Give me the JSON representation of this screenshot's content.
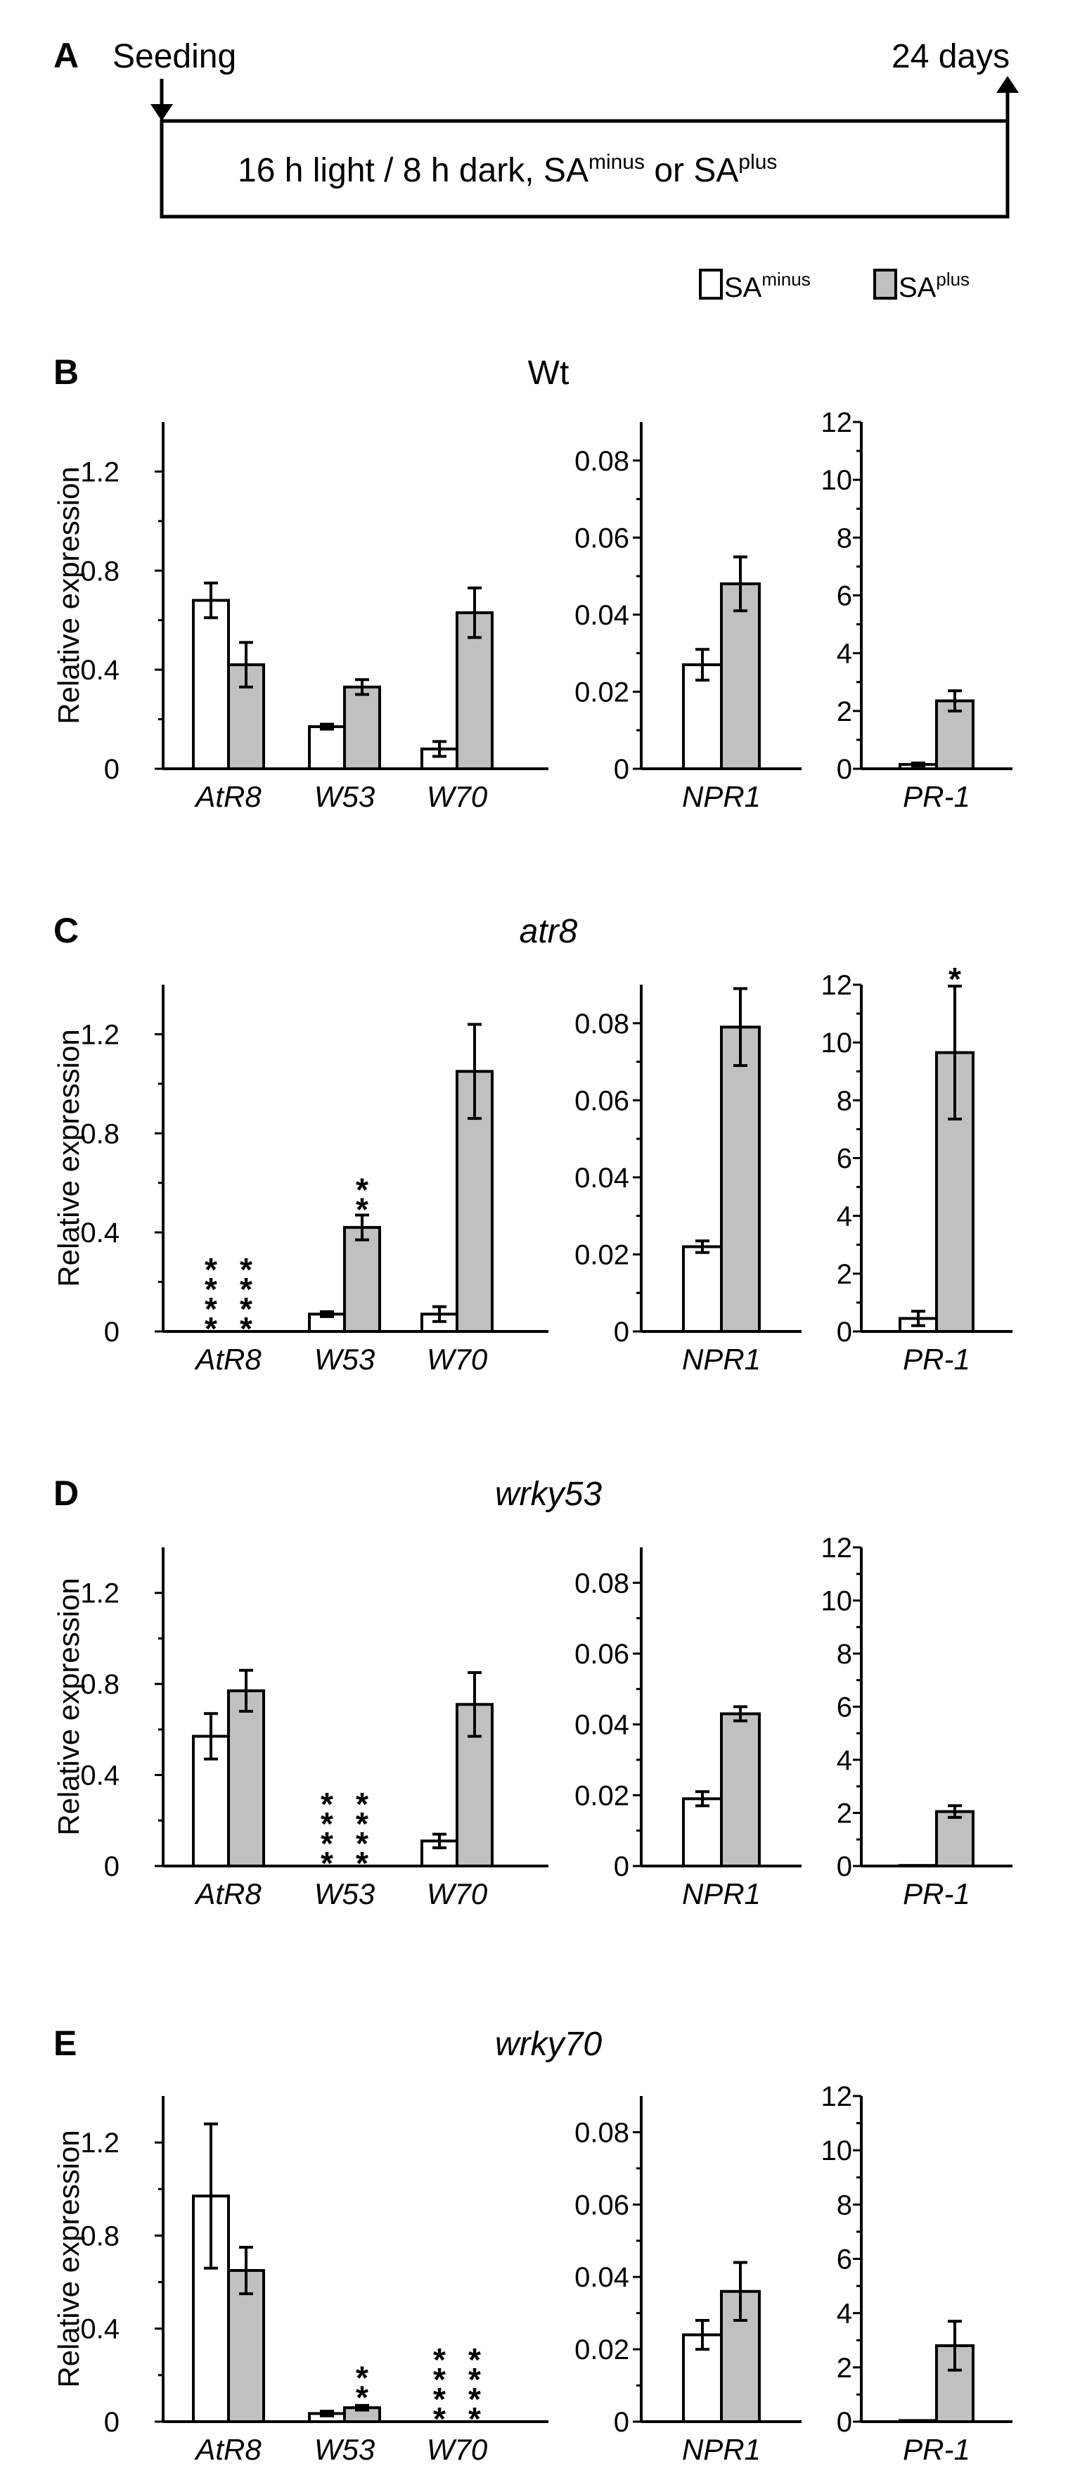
{
  "timeline": {
    "panel_label": "A",
    "start_label": "Seeding",
    "end_label": "24 days",
    "condition_text": "16 h light / 8 h dark, SA",
    "cond_sup1": "minus",
    "cond_mid": " or SA",
    "cond_sup2": "plus"
  },
  "legend": {
    "items": [
      {
        "base": "SA",
        "sup": "minus",
        "color": "#ffffff"
      },
      {
        "base": "SA",
        "sup": "plus",
        "color": "#c0c0c0"
      }
    ]
  },
  "colors": {
    "minus": "#ffffff",
    "plus": "#c0c0c0",
    "stroke": "#000000"
  },
  "y_axis_label": "Relative expression",
  "star_glyph": "*",
  "chart_data": [
    {
      "panel": "B",
      "title": "Wt",
      "title_italic": false,
      "type": "bar",
      "subplots": [
        {
          "categories": [
            "AtR8",
            "W53",
            "W70"
          ],
          "ylim": [
            0,
            1.4
          ],
          "ticks": [
            "0",
            "0.4",
            "0.8",
            "1.2"
          ],
          "tick_values": [
            0,
            0.4,
            0.8,
            1.2
          ],
          "series": [
            {
              "name": "SAminus",
              "values": [
                0.68,
                0.17,
                0.08
              ],
              "errors": [
                0.07,
                0.01,
                0.03
              ]
            },
            {
              "name": "SAplus",
              "values": [
                0.42,
                0.33,
                0.63
              ],
              "errors": [
                0.09,
                0.03,
                0.1
              ]
            }
          ],
          "stars": []
        },
        {
          "categories": [
            "NPR1"
          ],
          "ylim": [
            0,
            0.09
          ],
          "ticks": [
            "0",
            "0.02",
            "0.04",
            "0.06",
            "0.08"
          ],
          "tick_values": [
            0,
            0.02,
            0.04,
            0.06,
            0.08
          ],
          "series": [
            {
              "name": "SAminus",
              "values": [
                0.027
              ],
              "errors": [
                0.004
              ]
            },
            {
              "name": "SAplus",
              "values": [
                0.048
              ],
              "errors": [
                0.007
              ]
            }
          ],
          "stars": []
        },
        {
          "categories": [
            "PR-1"
          ],
          "ylim": [
            0,
            12
          ],
          "ticks": [
            "0",
            "2",
            "4",
            "6",
            "8",
            "10",
            "12"
          ],
          "tick_values": [
            0,
            2,
            4,
            6,
            8,
            10,
            12
          ],
          "series": [
            {
              "name": "SAminus",
              "values": [
                0.15
              ],
              "errors": [
                0.05
              ]
            },
            {
              "name": "SAplus",
              "values": [
                2.35
              ],
              "errors": [
                0.35
              ]
            }
          ],
          "stars": []
        }
      ]
    },
    {
      "panel": "C",
      "title": "atr8",
      "title_italic": true,
      "type": "bar",
      "subplots": [
        {
          "categories": [
            "AtR8",
            "W53",
            "W70"
          ],
          "ylim": [
            0,
            1.4
          ],
          "ticks": [
            "0",
            "0.4",
            "0.8",
            "1.2"
          ],
          "tick_values": [
            0,
            0.4,
            0.8,
            1.2
          ],
          "series": [
            {
              "name": "SAminus",
              "values": [
                0,
                0.07,
                0.07
              ],
              "errors": [
                0,
                0.01,
                0.03
              ]
            },
            {
              "name": "SAplus",
              "values": [
                0,
                0.42,
                1.05
              ],
              "errors": [
                0,
                0.05,
                0.19
              ]
            }
          ],
          "stars": [
            {
              "cat": 0,
              "series": 0,
              "n": 4,
              "base": 0
            },
            {
              "cat": 0,
              "series": 1,
              "n": 4,
              "base": 0
            },
            {
              "cat": 1,
              "series": 1,
              "n": 2,
              "base": 0.47
            }
          ]
        },
        {
          "categories": [
            "NPR1"
          ],
          "ylim": [
            0,
            0.09
          ],
          "ticks": [
            "0",
            "0.02",
            "0.04",
            "0.06",
            "0.08"
          ],
          "tick_values": [
            0,
            0.02,
            0.04,
            0.06,
            0.08
          ],
          "series": [
            {
              "name": "SAminus",
              "values": [
                0.022
              ],
              "errors": [
                0.0015
              ]
            },
            {
              "name": "SAplus",
              "values": [
                0.079
              ],
              "errors": [
                0.01
              ]
            }
          ],
          "stars": []
        },
        {
          "categories": [
            "PR-1"
          ],
          "ylim": [
            0,
            12
          ],
          "ticks": [
            "0",
            "2",
            "4",
            "6",
            "8",
            "10",
            "12"
          ],
          "tick_values": [
            0,
            2,
            4,
            6,
            8,
            10,
            12
          ],
          "series": [
            {
              "name": "SAminus",
              "values": [
                0.45
              ],
              "errors": [
                0.25
              ]
            },
            {
              "name": "SAplus",
              "values": [
                9.65
              ],
              "errors": [
                2.3
              ]
            }
          ],
          "stars": [
            {
              "cat": 0,
              "series": 1,
              "n": 1,
              "base": 12.0
            }
          ]
        }
      ]
    },
    {
      "panel": "D",
      "title": "wrky53",
      "title_italic": true,
      "type": "bar",
      "subplots": [
        {
          "categories": [
            "AtR8",
            "W53",
            "W70"
          ],
          "ylim": [
            0,
            1.4
          ],
          "ticks": [
            "0",
            "0.4",
            "0.8",
            "1.2"
          ],
          "tick_values": [
            0,
            0.4,
            0.8,
            1.2
          ],
          "series": [
            {
              "name": "SAminus",
              "values": [
                0.57,
                0,
                0.11
              ],
              "errors": [
                0.1,
                0,
                0.03
              ]
            },
            {
              "name": "SAplus",
              "values": [
                0.77,
                0,
                0.71
              ],
              "errors": [
                0.09,
                0,
                0.14
              ]
            }
          ],
          "stars": [
            {
              "cat": 1,
              "series": 0,
              "n": 4,
              "base": 0
            },
            {
              "cat": 1,
              "series": 1,
              "n": 4,
              "base": 0
            }
          ]
        },
        {
          "categories": [
            "NPR1"
          ],
          "ylim": [
            0,
            0.09
          ],
          "ticks": [
            "0",
            "0.02",
            "0.04",
            "0.06",
            "0.08"
          ],
          "tick_values": [
            0,
            0.02,
            0.04,
            0.06,
            0.08
          ],
          "series": [
            {
              "name": "SAminus",
              "values": [
                0.019
              ],
              "errors": [
                0.002
              ]
            },
            {
              "name": "SAplus",
              "values": [
                0.043
              ],
              "errors": [
                0.002
              ]
            }
          ],
          "stars": []
        },
        {
          "categories": [
            "PR-1"
          ],
          "ylim": [
            0,
            12
          ],
          "ticks": [
            "0",
            "2",
            "4",
            "6",
            "8",
            "10",
            "12"
          ],
          "tick_values": [
            0,
            2,
            4,
            6,
            8,
            10,
            12
          ],
          "series": [
            {
              "name": "SAminus",
              "values": [
                0.02
              ],
              "errors": [
                0
              ]
            },
            {
              "name": "SAplus",
              "values": [
                2.05
              ],
              "errors": [
                0.22
              ]
            }
          ],
          "stars": []
        }
      ]
    },
    {
      "panel": "E",
      "title": "wrky70",
      "title_italic": true,
      "type": "bar",
      "subplots": [
        {
          "categories": [
            "AtR8",
            "W53",
            "W70"
          ],
          "ylim": [
            0,
            1.4
          ],
          "ticks": [
            "0",
            "0.4",
            "0.8",
            "1.2"
          ],
          "tick_values": [
            0,
            0.4,
            0.8,
            1.2
          ],
          "series": [
            {
              "name": "SAminus",
              "values": [
                0.97,
                0.035,
                0
              ],
              "errors": [
                0.31,
                0.01,
                0
              ]
            },
            {
              "name": "SAplus",
              "values": [
                0.65,
                0.06,
                0
              ],
              "errors": [
                0.1,
                0.01,
                0
              ]
            }
          ],
          "stars": [
            {
              "cat": 1,
              "series": 1,
              "n": 2,
              "base": 0.08
            },
            {
              "cat": 2,
              "series": 0,
              "n": 4,
              "base": 0
            },
            {
              "cat": 2,
              "series": 1,
              "n": 4,
              "base": 0
            }
          ]
        },
        {
          "categories": [
            "NPR1"
          ],
          "ylim": [
            0,
            0.09
          ],
          "ticks": [
            "0",
            "0.02",
            "0.04",
            "0.06",
            "0.08"
          ],
          "tick_values": [
            0,
            0.02,
            0.04,
            0.06,
            0.08
          ],
          "series": [
            {
              "name": "SAminus",
              "values": [
                0.024
              ],
              "errors": [
                0.004
              ]
            },
            {
              "name": "SAplus",
              "values": [
                0.036
              ],
              "errors": [
                0.008
              ]
            }
          ],
          "stars": []
        },
        {
          "categories": [
            "PR-1"
          ],
          "ylim": [
            0,
            12
          ],
          "ticks": [
            "0",
            "2",
            "4",
            "6",
            "8",
            "10",
            "12"
          ],
          "tick_values": [
            0,
            2,
            4,
            6,
            8,
            10,
            12
          ],
          "series": [
            {
              "name": "SAminus",
              "values": [
                0.04
              ],
              "errors": [
                0
              ]
            },
            {
              "name": "SAplus",
              "values": [
                2.8
              ],
              "errors": [
                0.9
              ]
            }
          ],
          "stars": []
        }
      ]
    }
  ]
}
